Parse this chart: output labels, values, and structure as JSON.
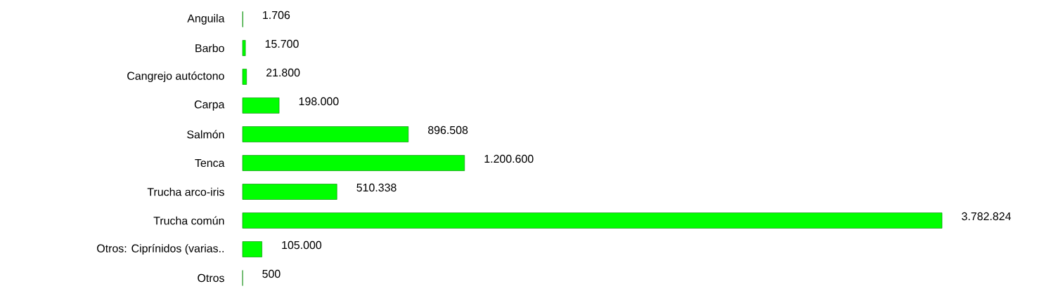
{
  "chart_data": {
    "type": "bar",
    "orientation": "horizontal",
    "categories": [
      "Anguila",
      "Barbo",
      "Cangrejo autóctono",
      "Carpa",
      "Salmón",
      "Tenca",
      "Trucha arco-iris",
      "Trucha común",
      "Otros: Ciprínidos (varias..",
      "Otros"
    ],
    "values": [
      1706,
      15700,
      21800,
      198000,
      896508,
      1200600,
      510338,
      3782824,
      105000,
      500
    ],
    "value_labels": [
      "1.706",
      "15.700",
      "21.800",
      "198.000",
      "896.508",
      "1.200.600",
      "510.338",
      "3.782.824",
      "105.000",
      "500"
    ],
    "color": "#00ff00"
  }
}
